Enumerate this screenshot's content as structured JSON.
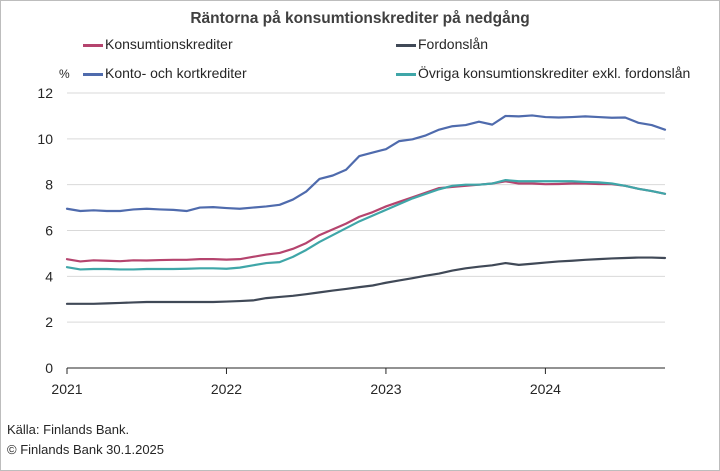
{
  "chart_data": {
    "type": "line",
    "title": "Räntorna på konsumtionskrediter på nedgång",
    "ylabel": "%",
    "ylim": [
      0,
      12
    ],
    "yticks": [
      0,
      2,
      4,
      6,
      8,
      10,
      12
    ],
    "xlim": [
      "2021-01",
      "2024-10"
    ],
    "xticks": [
      "2021",
      "2022",
      "2023",
      "2024"
    ],
    "grid": "horizontal",
    "legend": "top, two columns",
    "x": [
      "2021-01",
      "2021-02",
      "2021-03",
      "2021-04",
      "2021-05",
      "2021-06",
      "2021-07",
      "2021-08",
      "2021-09",
      "2021-10",
      "2021-11",
      "2021-12",
      "2022-01",
      "2022-02",
      "2022-03",
      "2022-04",
      "2022-05",
      "2022-06",
      "2022-07",
      "2022-08",
      "2022-09",
      "2022-10",
      "2022-11",
      "2022-12",
      "2023-01",
      "2023-02",
      "2023-03",
      "2023-04",
      "2023-05",
      "2023-06",
      "2023-07",
      "2023-08",
      "2023-09",
      "2023-10",
      "2023-11",
      "2023-12",
      "2024-01",
      "2024-02",
      "2024-03",
      "2024-04",
      "2024-05",
      "2024-06",
      "2024-07",
      "2024-08",
      "2024-09",
      "2024-10"
    ],
    "series": [
      {
        "name": "Konsumtionskrediter",
        "color": "#b5446e",
        "values": [
          4.75,
          4.65,
          4.7,
          4.68,
          4.66,
          4.7,
          4.69,
          4.71,
          4.72,
          4.72,
          4.75,
          4.75,
          4.73,
          4.75,
          4.85,
          4.95,
          5.02,
          5.2,
          5.45,
          5.8,
          6.05,
          6.3,
          6.6,
          6.8,
          7.05,
          7.25,
          7.45,
          7.65,
          7.85,
          7.9,
          7.95,
          8.0,
          8.05,
          8.15,
          8.05,
          8.05,
          8.02,
          8.03,
          8.05,
          8.05,
          8.03,
          8.02,
          7.95,
          7.82,
          7.72,
          7.6
        ]
      },
      {
        "name": "Fordonslån",
        "color": "#404957",
        "values": [
          2.8,
          2.8,
          2.8,
          2.82,
          2.84,
          2.86,
          2.88,
          2.88,
          2.88,
          2.88,
          2.88,
          2.88,
          2.9,
          2.92,
          2.95,
          3.05,
          3.1,
          3.15,
          3.22,
          3.3,
          3.38,
          3.45,
          3.53,
          3.6,
          3.72,
          3.82,
          3.92,
          4.03,
          4.12,
          4.25,
          4.35,
          4.42,
          4.48,
          4.58,
          4.5,
          4.55,
          4.6,
          4.65,
          4.68,
          4.72,
          4.75,
          4.78,
          4.8,
          4.82,
          4.82,
          4.8
        ]
      },
      {
        "name": "Konto- och kortkrediter",
        "color": "#4f6bad",
        "values": [
          6.95,
          6.85,
          6.88,
          6.85,
          6.85,
          6.92,
          6.95,
          6.92,
          6.9,
          6.85,
          7.0,
          7.02,
          6.98,
          6.95,
          7.0,
          7.05,
          7.12,
          7.35,
          7.7,
          8.25,
          8.4,
          8.65,
          9.25,
          9.4,
          9.55,
          9.9,
          9.98,
          10.15,
          10.4,
          10.55,
          10.6,
          10.75,
          10.62,
          11.0,
          10.98,
          11.02,
          10.95,
          10.93,
          10.95,
          10.98,
          10.95,
          10.92,
          10.93,
          10.7,
          10.6,
          10.4
        ]
      },
      {
        "name": "Övriga konsumtionskrediter exkl. fordonslån",
        "color": "#3fa6a8",
        "values": [
          4.4,
          4.3,
          4.32,
          4.32,
          4.3,
          4.3,
          4.32,
          4.32,
          4.32,
          4.33,
          4.35,
          4.35,
          4.33,
          4.38,
          4.48,
          4.58,
          4.62,
          4.85,
          5.15,
          5.5,
          5.8,
          6.1,
          6.4,
          6.65,
          6.9,
          7.15,
          7.4,
          7.6,
          7.8,
          7.95,
          8.0,
          8.0,
          8.05,
          8.2,
          8.15,
          8.15,
          8.15,
          8.15,
          8.15,
          8.12,
          8.1,
          8.05,
          7.95,
          7.82,
          7.72,
          7.6
        ]
      }
    ]
  },
  "legend": {
    "items": [
      {
        "label": "Konsumtionskrediter",
        "color": "#b5446e"
      },
      {
        "label": "Fordonslån",
        "color": "#404957"
      },
      {
        "label": "Konto- och kortkrediter",
        "color": "#4f6bad"
      },
      {
        "label": "Övriga konsumtionskrediter exkl. fordonslån",
        "color": "#3fa6a8"
      }
    ]
  },
  "footer": {
    "source": "Källa: Finlands Bank.",
    "copyright": "© Finlands Bank 30.1.2025"
  }
}
